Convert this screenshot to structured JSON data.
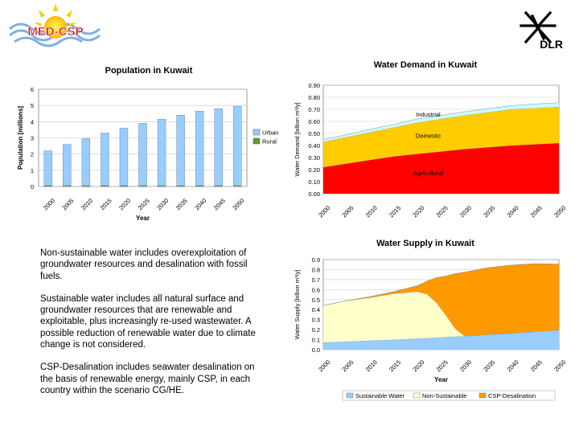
{
  "logos": {
    "med_csp": "MED-CSP",
    "dlr": "DLR"
  },
  "notes": [
    "Non-sustainable water includes overexploitation of groundwater resources and desalination with fossil fuels.",
    "Sustainable water includes all natural surface and groundwater resources that are renewable and exploitable, plus increasingly re-used wastewater. A possible reduction of renewable water due to climate change is not considered.",
    "CSP-Desalination includes seawater desalination on the basis of renewable energy, mainly CSP, in each country within the scenario CG/HE."
  ],
  "colors": {
    "urban": "#99ccff",
    "rural": "#669933",
    "industrial": "#ccffff",
    "domestic": "#ffcc00",
    "agricultural": "#ff0000",
    "sustainable": "#99ccff",
    "non_sustainable": "#ffffcc",
    "csp": "#ff9900"
  },
  "chart_data": [
    {
      "id": "population",
      "type": "bar",
      "title": "Population in Kuwait",
      "xlabel": "Year",
      "ylabel": "Population [millions]",
      "ylim": [
        0,
        6
      ],
      "yticks": [
        "0",
        "1",
        "2",
        "3",
        "4",
        "5",
        "6"
      ],
      "stacked": true,
      "grid": true,
      "legend": "right",
      "categories": [
        "2000",
        "2005",
        "2010",
        "2015",
        "2020",
        "2025",
        "2030",
        "2035",
        "2040",
        "2045",
        "2050"
      ],
      "series": [
        {
          "name": "Urban",
          "color": "#99ccff",
          "values": [
            2.15,
            2.55,
            2.9,
            3.25,
            3.55,
            3.85,
            4.1,
            4.35,
            4.6,
            4.75,
            4.9
          ]
        },
        {
          "name": "Rural",
          "color": "#669933",
          "values": [
            0.05,
            0.05,
            0.05,
            0.05,
            0.05,
            0.05,
            0.05,
            0.05,
            0.05,
            0.05,
            0.05
          ]
        }
      ]
    },
    {
      "id": "demand",
      "type": "area",
      "title": "Water Demand in Kuwait",
      "xlabel": "",
      "ylabel": "Water Demand [billion m³/y]",
      "ylim": [
        0,
        0.9
      ],
      "yticks": [
        "0.00",
        "0.10",
        "0.20",
        "0.30",
        "0.40",
        "0.50",
        "0.60",
        "0.70",
        "0.80",
        "0.90"
      ],
      "stacked": true,
      "grid": true,
      "x": [
        "2000",
        "2005",
        "2010",
        "2015",
        "2020",
        "2025",
        "2030",
        "2035",
        "2040",
        "2045",
        "2050"
      ],
      "series": [
        {
          "name": "Agricultural",
          "color": "#ff0000",
          "values": [
            0.22,
            0.25,
            0.28,
            0.31,
            0.33,
            0.35,
            0.37,
            0.385,
            0.4,
            0.41,
            0.42
          ]
        },
        {
          "name": "Domestic",
          "color": "#ffcc00",
          "values": [
            0.21,
            0.22,
            0.23,
            0.24,
            0.26,
            0.27,
            0.28,
            0.29,
            0.3,
            0.3,
            0.3
          ]
        },
        {
          "name": "Industrial",
          "color": "#ccffff",
          "values": [
            0.02,
            0.02,
            0.025,
            0.025,
            0.03,
            0.03,
            0.03,
            0.03,
            0.03,
            0.035,
            0.035
          ]
        }
      ]
    },
    {
      "id": "supply",
      "type": "area",
      "title": "Water Supply in Kuwait",
      "xlabel": "Year",
      "ylabel": "Water Supply [billion m³/y]",
      "ylim": [
        0,
        0.9
      ],
      "yticks": [
        "0.0",
        "0.1",
        "0.2",
        "0.3",
        "0.4",
        "0.5",
        "0.6",
        "0.7",
        "0.8",
        "0.9"
      ],
      "stacked": true,
      "grid": true,
      "legend": "bottom",
      "x": [
        2000,
        2005,
        2010,
        2015,
        2020,
        2022,
        2024,
        2026,
        2028,
        2030,
        2035,
        2040,
        2045,
        2050
      ],
      "series": [
        {
          "name": "Sustainable Water",
          "color": "#99ccff",
          "values": [
            0.07,
            0.08,
            0.09,
            0.1,
            0.11,
            0.115,
            0.12,
            0.125,
            0.13,
            0.135,
            0.15,
            0.165,
            0.18,
            0.195
          ]
        },
        {
          "name": "Non-Sustainable",
          "color": "#ffffcc",
          "values": [
            0.37,
            0.41,
            0.43,
            0.46,
            0.47,
            0.44,
            0.35,
            0.22,
            0.08,
            0.0,
            0.0,
            0.0,
            0.0,
            0.0
          ]
        },
        {
          "name": "CSP-Desalination",
          "color": "#ff9900",
          "values": [
            0.0,
            0.0,
            0.01,
            0.02,
            0.06,
            0.13,
            0.25,
            0.39,
            0.55,
            0.64,
            0.67,
            0.68,
            0.68,
            0.66
          ]
        }
      ]
    }
  ]
}
